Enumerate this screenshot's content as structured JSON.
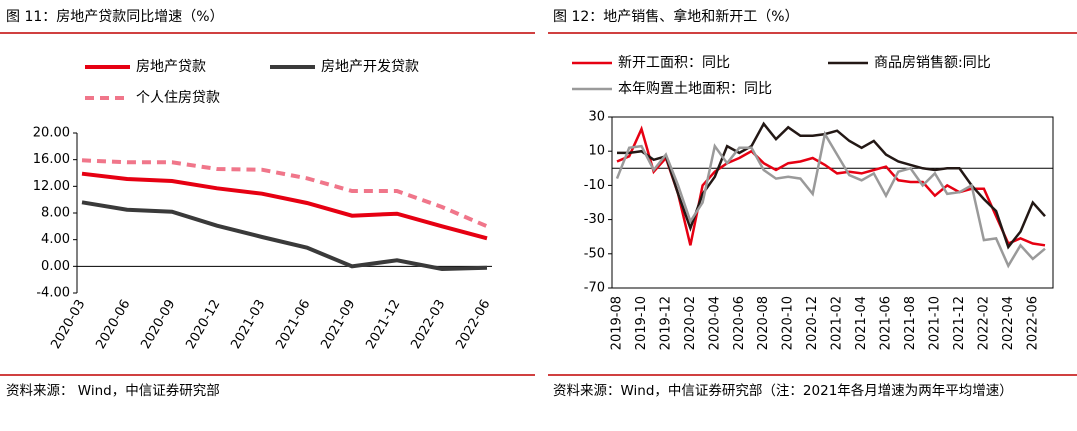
{
  "chart_data": [
    {
      "type": "line",
      "title": "图 11：房地产贷款同比增速（%）",
      "categories": [
        "2020-03",
        "2020-06",
        "2020-09",
        "2020-12",
        "2021-03",
        "2021-06",
        "2021-09",
        "2021-12",
        "2022-03",
        "2022-06"
      ],
      "series": [
        {
          "name": "房地产贷款",
          "color": "#e60012",
          "values": [
            13.9,
            13.1,
            12.8,
            11.7,
            10.9,
            9.5,
            7.6,
            7.9,
            6.0,
            4.2
          ]
        },
        {
          "name": "房地产开发贷款",
          "color": "#3a3a3a",
          "values": [
            9.6,
            8.5,
            8.2,
            6.1,
            4.4,
            2.8,
            0.0,
            0.9,
            -0.4,
            -0.2
          ]
        },
        {
          "name": "个人住房贷款",
          "color": "#f0768a",
          "style": "dashed",
          "values": [
            15.9,
            15.6,
            15.6,
            14.6,
            14.5,
            13.2,
            11.3,
            11.3,
            8.9,
            6.0
          ]
        }
      ],
      "ylim": [
        -4,
        20
      ],
      "yticks": [
        {
          "value": -4,
          "label": "-4.00"
        },
        {
          "value": 0,
          "label": "0.00"
        },
        {
          "value": 4,
          "label": "4.00"
        },
        {
          "value": 8,
          "label": "8.00"
        },
        {
          "value": 12,
          "label": "12.00"
        },
        {
          "value": 16,
          "label": "16.00"
        },
        {
          "value": 20,
          "label": "20.00"
        }
      ],
      "source": "资料来源： Wind，中信证券研究部"
    },
    {
      "type": "line",
      "title": "图 12：地产销售、拿地和新开工（%）",
      "categories": [
        "2019-08",
        null,
        "2019-10",
        null,
        "2019-12",
        null,
        "2020-02",
        null,
        "2020-04",
        null,
        "2020-06",
        null,
        "2020-08",
        null,
        "2020-10",
        null,
        "2020-12",
        null,
        "2021-02",
        null,
        "2021-04",
        null,
        "2021-06",
        null,
        "2021-08",
        null,
        "2021-10",
        null,
        "2021-12",
        null,
        "2022-02",
        null,
        "2022-04",
        null,
        "2022-06",
        null
      ],
      "series": [
        {
          "name": "新开工面积：同比",
          "color": "#e60012",
          "values": [
            4,
            7,
            23,
            -2,
            6,
            -15,
            -45,
            -10,
            -2,
            3,
            6,
            10,
            3,
            -1,
            3,
            4,
            6,
            2,
            -3,
            -2,
            -3,
            -1,
            1,
            -7,
            -8,
            -8,
            -16,
            -10,
            -14,
            -12,
            -12,
            -28,
            -44,
            -41,
            -44,
            -45
          ]
        },
        {
          "name": "商品房销售额:同比",
          "color": "#231815",
          "values": [
            9,
            9,
            10,
            5,
            7,
            -15,
            -35,
            -15,
            -5,
            13,
            9,
            13,
            26,
            17,
            24,
            19,
            19,
            20,
            22,
            16,
            12,
            16,
            8,
            4,
            2,
            0,
            -1,
            0,
            0,
            -10,
            -18,
            -25,
            -46,
            -37,
            -20,
            -28
          ]
        },
        {
          "name": "本年购置土地面积：同比",
          "color": "#9a9a9a",
          "values": [
            -6,
            12,
            13,
            -1,
            8,
            -10,
            -31,
            -20,
            13,
            3,
            12,
            12,
            -1,
            -6,
            -5,
            -6,
            -15,
            20,
            8,
            -4,
            -7,
            -3,
            -16,
            -2,
            0,
            -10,
            -3,
            -15,
            -14,
            -10,
            -42,
            -41,
            -57,
            -45,
            -53,
            -47
          ]
        }
      ],
      "ylim": [
        -70,
        30
      ],
      "yticks": [
        -70,
        -50,
        -30,
        -10,
        10,
        30
      ],
      "source": "资料来源：Wind，中信证券研究部（注：2021年各月增速为两年平均增速）"
    }
  ]
}
